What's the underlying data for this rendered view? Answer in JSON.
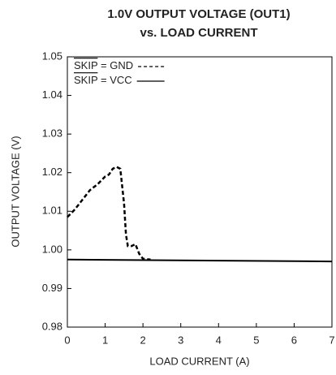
{
  "chart_data": {
    "type": "line",
    "title": "1.0V OUTPUT VOLTAGE (OUT1)",
    "subtitle": "vs. LOAD CURRENT",
    "xlabel": "LOAD CURRENT (A)",
    "ylabel": "OUTPUT VOLTAGE (V)",
    "xlim": [
      0,
      7
    ],
    "xticks": [
      0,
      1,
      2,
      3,
      4,
      5,
      6,
      7
    ],
    "ylim": [
      0.98,
      1.05
    ],
    "yticks": [
      0.98,
      0.99,
      {
        "value": 1,
        "label": "1.00"
      },
      1.01,
      1.02,
      1.03,
      1.04,
      1.05
    ],
    "grid": false,
    "legend": "upper left",
    "series": [
      {
        "name": "SKIP = GND",
        "color": "#000000",
        "dash": true,
        "x": [
          0,
          0.2,
          0.4,
          0.6,
          0.8,
          1.0,
          1.1,
          1.2,
          1.3,
          1.4,
          1.5,
          1.55,
          1.6,
          1.7,
          1.8,
          1.9,
          2.0,
          2.2
        ],
        "values": [
          1.0085,
          1.0105,
          1.013,
          1.0155,
          1.017,
          1.019,
          1.0195,
          1.021,
          1.0215,
          1.021,
          1.012,
          1.004,
          1.001,
          1.001,
          1.0015,
          0.999,
          0.9977,
          0.9975
        ]
      },
      {
        "name": "SKIP = VCC",
        "color": "#000000",
        "dash": false,
        "x": [
          0,
          7
        ],
        "values": [
          0.9975,
          0.997
        ]
      }
    ]
  }
}
